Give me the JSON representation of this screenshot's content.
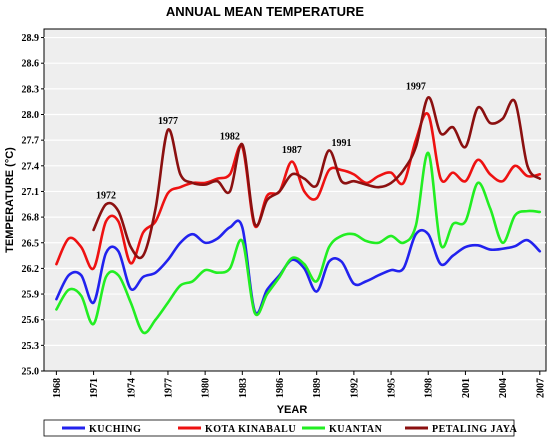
{
  "chart_data": {
    "type": "line",
    "title": "ANNUAL MEAN TEMPERATURE",
    "xlabel": "YEAR",
    "ylabel": "TEMPERATURE (°C)",
    "xlim": [
      1967,
      2007.5
    ],
    "ylim": [
      25.0,
      29.0
    ],
    "y_ticks": [
      "25.0",
      "25.3",
      "25.6",
      "25.9",
      "26.2",
      "26.5",
      "26.8",
      "27.1",
      "27.4",
      "27.7",
      "28.0",
      "28.3",
      "28.6",
      "28.9"
    ],
    "x_ticks": [
      "1968",
      "1971",
      "1974",
      "1977",
      "1980",
      "1983",
      "1986",
      "1989",
      "1992",
      "1995",
      "1998",
      "2001",
      "2004",
      "2007"
    ],
    "grid": "horizontal",
    "legend_position": "bottom",
    "background": "#eeeeee",
    "annotations": [
      {
        "text": "1972",
        "x": 1972,
        "y": 27.02
      },
      {
        "text": "1977",
        "x": 1977,
        "y": 27.89
      },
      {
        "text": "1982",
        "x": 1982,
        "y": 27.71
      },
      {
        "text": "1987",
        "x": 1987,
        "y": 27.55
      },
      {
        "text": "1991",
        "x": 1991,
        "y": 27.63
      },
      {
        "text": "1997",
        "x": 1997,
        "y": 28.29
      }
    ],
    "series": [
      {
        "name": "KUCHING",
        "color": "#2222ee",
        "x": [
          1968,
          1969,
          1970,
          1971,
          1972,
          1973,
          1974,
          1975,
          1976,
          1977,
          1978,
          1979,
          1980,
          1981,
          1982,
          1983,
          1984,
          1985,
          1986,
          1987,
          1988,
          1989,
          1990,
          1991,
          1992,
          1993,
          1994,
          1995,
          1996,
          1997,
          1998,
          1999,
          2000,
          2001,
          2002,
          2003,
          2004,
          2005,
          2006,
          2007
        ],
        "values": [
          25.84,
          26.12,
          26.12,
          25.8,
          26.38,
          26.4,
          25.96,
          26.1,
          26.15,
          26.3,
          26.5,
          26.6,
          26.5,
          26.55,
          26.68,
          26.68,
          25.7,
          25.95,
          26.12,
          26.3,
          26.2,
          25.93,
          26.28,
          26.28,
          26.02,
          26.05,
          26.12,
          26.18,
          26.2,
          26.6,
          26.6,
          26.25,
          26.35,
          26.45,
          26.47,
          26.42,
          26.43,
          26.46,
          26.53,
          26.4
        ]
      },
      {
        "name": "KOTA KINABALU",
        "color": "#ee1111",
        "x": [
          1968,
          1969,
          1970,
          1971,
          1972,
          1973,
          1974,
          1975,
          1976,
          1977,
          1978,
          1979,
          1980,
          1981,
          1982,
          1983,
          1984,
          1985,
          1986,
          1987,
          1988,
          1989,
          1990,
          1991,
          1992,
          1993,
          1994,
          1995,
          1996,
          1997,
          1998,
          1999,
          2000,
          2001,
          2002,
          2003,
          2004,
          2005,
          2006,
          2007
        ],
        "values": [
          26.25,
          26.55,
          26.45,
          26.2,
          26.75,
          26.75,
          26.26,
          26.62,
          26.75,
          27.08,
          27.15,
          27.2,
          27.2,
          27.25,
          27.3,
          27.62,
          26.7,
          27.05,
          27.1,
          27.45,
          27.1,
          27.02,
          27.35,
          27.35,
          27.3,
          27.2,
          27.28,
          27.32,
          27.2,
          27.7,
          28.0,
          27.25,
          27.32,
          27.22,
          27.47,
          27.3,
          27.22,
          27.4,
          27.28,
          27.3
        ]
      },
      {
        "name": "KUANTAN",
        "color": "#22ee22",
        "x": [
          1968,
          1969,
          1970,
          1971,
          1972,
          1973,
          1974,
          1975,
          1976,
          1977,
          1978,
          1979,
          1980,
          1981,
          1982,
          1983,
          1984,
          1985,
          1986,
          1987,
          1988,
          1989,
          1990,
          1991,
          1992,
          1993,
          1994,
          1995,
          1996,
          1997,
          1998,
          1999,
          2000,
          2001,
          2002,
          2003,
          2004,
          2005,
          2006,
          2007
        ],
        "values": [
          25.72,
          25.95,
          25.88,
          25.55,
          26.1,
          26.12,
          25.8,
          25.45,
          25.6,
          25.8,
          26.0,
          26.05,
          26.18,
          26.15,
          26.2,
          26.52,
          25.68,
          25.9,
          26.1,
          26.32,
          26.25,
          26.05,
          26.45,
          26.58,
          26.6,
          26.52,
          26.5,
          26.58,
          26.5,
          26.7,
          27.55,
          26.48,
          26.72,
          26.75,
          27.2,
          26.9,
          26.5,
          26.82,
          26.87,
          26.86
        ]
      },
      {
        "name": "PETALING JAYA",
        "color": "#8b1010",
        "x": [
          1971,
          1972,
          1973,
          1974,
          1975,
          1976,
          1977,
          1978,
          1979,
          1980,
          1981,
          1982,
          1983,
          1984,
          1985,
          1986,
          1987,
          1988,
          1989,
          1990,
          1991,
          1992,
          1993,
          1994,
          1995,
          1996,
          1997,
          1998,
          1999,
          2000,
          2001,
          2002,
          2003,
          2004,
          2005,
          2006,
          2007
        ],
        "values": [
          26.65,
          26.95,
          26.87,
          26.45,
          26.35,
          26.9,
          27.82,
          27.3,
          27.2,
          27.18,
          27.22,
          27.1,
          27.65,
          26.72,
          27.0,
          27.1,
          27.3,
          27.25,
          27.17,
          27.58,
          27.22,
          27.22,
          27.18,
          27.15,
          27.2,
          27.35,
          27.62,
          28.2,
          27.78,
          27.85,
          27.62,
          28.08,
          27.9,
          27.95,
          28.15,
          27.4,
          27.25
        ]
      }
    ]
  }
}
